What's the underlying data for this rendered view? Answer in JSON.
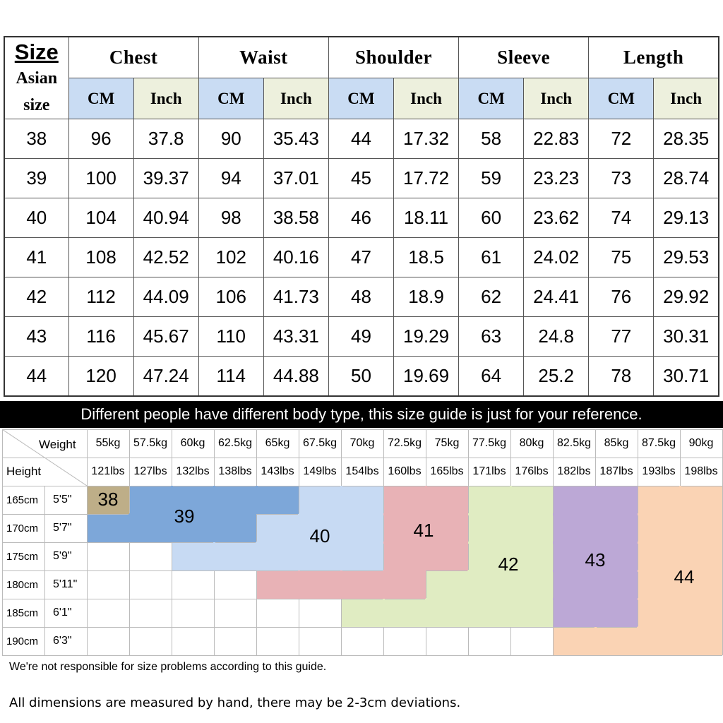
{
  "table": {
    "corner": {
      "size": "Size",
      "asian": "Asian",
      "size2": "size"
    },
    "groups": [
      "Chest",
      "Waist",
      "Shoulder",
      "Sleeve",
      "Length"
    ],
    "unit_cm": "CM",
    "unit_inch": "Inch",
    "rows": [
      [
        "38",
        "96",
        "37.8",
        "90",
        "35.43",
        "44",
        "17.32",
        "58",
        "22.83",
        "72",
        "28.35"
      ],
      [
        "39",
        "100",
        "39.37",
        "94",
        "37.01",
        "45",
        "17.72",
        "59",
        "23.23",
        "73",
        "28.74"
      ],
      [
        "40",
        "104",
        "40.94",
        "98",
        "38.58",
        "46",
        "18.11",
        "60",
        "23.62",
        "74",
        "29.13"
      ],
      [
        "41",
        "108",
        "42.52",
        "102",
        "40.16",
        "47",
        "18.5",
        "61",
        "24.02",
        "75",
        "29.53"
      ],
      [
        "42",
        "112",
        "44.09",
        "106",
        "41.73",
        "48",
        "18.9",
        "62",
        "24.41",
        "76",
        "29.92"
      ],
      [
        "43",
        "116",
        "45.67",
        "110",
        "43.31",
        "49",
        "19.29",
        "63",
        "24.8",
        "77",
        "30.31"
      ],
      [
        "44",
        "120",
        "47.24",
        "114",
        "44.88",
        "50",
        "19.69",
        "64",
        "25.2",
        "78",
        "30.71"
      ]
    ]
  },
  "banner": "Different people have different body type, this size guide is just for your reference.",
  "guide": {
    "weight_label": "Weight",
    "height_label": "Height",
    "weights_kg": [
      "55kg",
      "57.5kg",
      "60kg",
      "62.5kg",
      "65kg",
      "67.5kg",
      "70kg",
      "72.5kg",
      "75kg",
      "77.5kg",
      "80kg",
      "82.5kg",
      "85kg",
      "87.5kg",
      "90kg"
    ],
    "weights_lbs": [
      "121lbs",
      "127lbs",
      "132lbs",
      "138lbs",
      "143lbs",
      "149lbs",
      "154lbs",
      "160lbs",
      "165lbs",
      "171lbs",
      "176lbs",
      "182lbs",
      "187lbs",
      "193lbs",
      "198lbs"
    ],
    "heights_cm": [
      "165cm",
      "170cm",
      "175cm",
      "180cm",
      "185cm",
      "190cm"
    ],
    "heights_ft": [
      "5'5\"",
      "5'7\"",
      "5'9\"",
      "5'11\"",
      "6'1\"",
      "6'3\""
    ],
    "zones": [
      {
        "label": "38",
        "color": "#beae88"
      },
      {
        "label": "39",
        "color": "#7da7d9"
      },
      {
        "label": "40",
        "color": "#c7daf3"
      },
      {
        "label": "41",
        "color": "#e8b2b6"
      },
      {
        "label": "42",
        "color": "#e0ecc2"
      },
      {
        "label": "43",
        "color": "#bca8d6"
      },
      {
        "label": "44",
        "color": "#fad3b4"
      }
    ],
    "zone_map": [
      [
        0,
        1,
        1,
        1,
        1,
        2,
        2,
        3,
        3,
        4,
        4,
        5,
        5,
        6,
        6
      ],
      [
        1,
        1,
        1,
        1,
        2,
        2,
        2,
        3,
        3,
        4,
        4,
        5,
        5,
        6,
        6
      ],
      [
        -1,
        -1,
        2,
        2,
        2,
        2,
        2,
        3,
        3,
        4,
        4,
        5,
        5,
        6,
        6
      ],
      [
        -1,
        -1,
        -1,
        -1,
        3,
        3,
        3,
        3,
        4,
        4,
        4,
        5,
        5,
        6,
        6
      ],
      [
        -1,
        -1,
        -1,
        -1,
        -1,
        -1,
        4,
        4,
        4,
        4,
        4,
        5,
        5,
        6,
        6
      ],
      [
        -1,
        -1,
        -1,
        -1,
        -1,
        -1,
        -1,
        -1,
        -1,
        -1,
        -1,
        6,
        6,
        6,
        6
      ]
    ]
  },
  "notes": {
    "responsibility": "We're not responsible for size problems according to this guide.",
    "measure": "All dimensions are measured by hand, there may be 2-3cm deviations."
  }
}
